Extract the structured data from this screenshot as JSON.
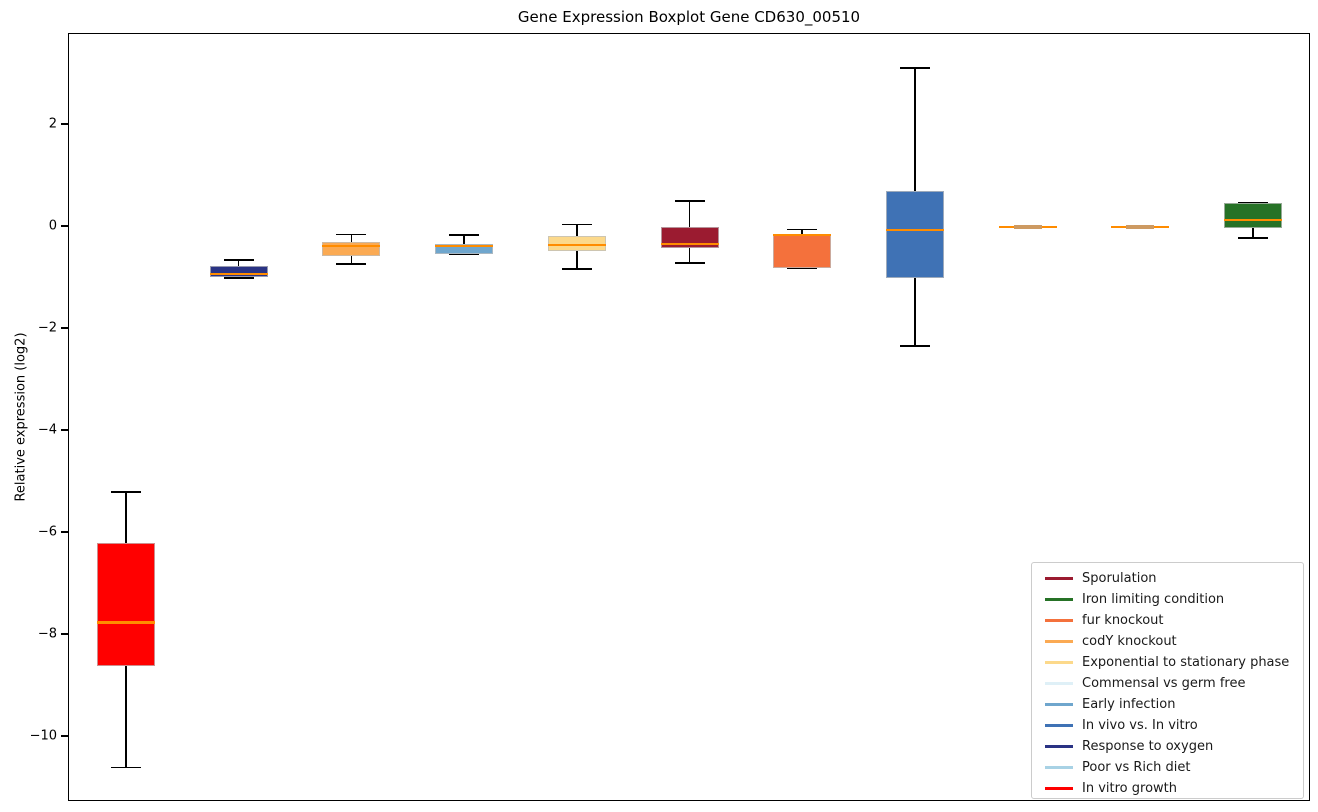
{
  "chart_data": {
    "type": "boxplot",
    "title": "Gene Expression Boxplot Gene CD630_00510",
    "ylabel": "Relative expression (log2)",
    "yticks": [
      {
        "label": "2",
        "value": 2
      },
      {
        "label": "0",
        "value": 0
      },
      {
        "label": "−2",
        "value": -2
      },
      {
        "label": "−4",
        "value": -4
      },
      {
        "label": "−6",
        "value": -6
      },
      {
        "label": "−8",
        "value": -8
      },
      {
        "label": "−10",
        "value": -10
      }
    ],
    "ylim": [
      -11.3,
      3.8
    ],
    "grid": false,
    "x_axis_labels": "none",
    "median_color": "#ff8c00",
    "flat_box_center_color": "#cd9a62",
    "whisker_color": "#000000",
    "boxes": [
      {
        "name": "In vitro growth",
        "color": "#ff0000",
        "whisker_low": -10.6,
        "q1": -8.6,
        "median": -7.75,
        "q3": -6.2,
        "whisker_high": -5.2,
        "flat": false
      },
      {
        "name": "Response to oxygen",
        "color": "#2a3384",
        "whisker_low": -1.0,
        "q1": -0.98,
        "median": -0.92,
        "q3": -0.76,
        "whisker_high": -0.65,
        "flat": false
      },
      {
        "name": "codY knockout",
        "color": "#fbaa53",
        "whisker_low": -0.73,
        "q1": -0.57,
        "median": -0.37,
        "q3": -0.29,
        "whisker_high": -0.15,
        "flat": false
      },
      {
        "name": "Early infection",
        "color": "#6fa6cd",
        "whisker_low": -0.53,
        "q1": -0.53,
        "median": -0.37,
        "q3": -0.33,
        "whisker_high": -0.16,
        "flat": false
      },
      {
        "name": "Exponential to stationary phase",
        "color": "#fcd98b",
        "whisker_low": -0.82,
        "q1": -0.47,
        "median": -0.35,
        "q3": -0.18,
        "whisker_high": 0.05,
        "flat": false
      },
      {
        "name": "Sporulation",
        "color": "#9b1b30",
        "whisker_low": -0.7,
        "q1": -0.41,
        "median": -0.33,
        "q3": 0.0,
        "whisker_high": 0.51,
        "flat": false
      },
      {
        "name": "fur knockout",
        "color": "#f4713c",
        "whisker_low": -0.8,
        "q1": -0.8,
        "median": -0.16,
        "q3": -0.14,
        "whisker_high": -0.05,
        "flat": false
      },
      {
        "name": "In vivo vs. In vitro",
        "color": "#3f72b5",
        "whisker_low": -2.33,
        "q1": -1.0,
        "median": -0.06,
        "q3": 0.71,
        "whisker_high": 3.12,
        "flat": false
      },
      {
        "name": "Commensal vs germ free",
        "color": "#dff0f7",
        "whisker_low": -0.02,
        "q1": -0.01,
        "median": 0.0,
        "q3": 0.01,
        "whisker_high": 0.02,
        "flat": true
      },
      {
        "name": "Poor vs Rich diet",
        "color": "#a8d2e5",
        "whisker_low": -0.02,
        "q1": -0.01,
        "median": 0.0,
        "q3": 0.01,
        "whisker_high": 0.02,
        "flat": true
      },
      {
        "name": "Iron limiting condition",
        "color": "#267226",
        "whisker_low": -0.22,
        "q1": -0.02,
        "median": 0.14,
        "q3": 0.47,
        "whisker_high": 0.47,
        "flat": false
      }
    ],
    "legend": {
      "position": "lower right",
      "entries": [
        {
          "label": "Sporulation",
          "color": "#9b1b30"
        },
        {
          "label": "Iron limiting condition",
          "color": "#267226"
        },
        {
          "label": "fur knockout",
          "color": "#f4713c"
        },
        {
          "label": "codY knockout",
          "color": "#fbaa53"
        },
        {
          "label": "Exponential to stationary phase",
          "color": "#fcd98b"
        },
        {
          "label": "Commensal vs germ free",
          "color": "#dff0f7"
        },
        {
          "label": "Early infection",
          "color": "#6fa6cd"
        },
        {
          "label": "In vivo vs. In vitro",
          "color": "#3f72b5"
        },
        {
          "label": "Response to oxygen",
          "color": "#2a3384"
        },
        {
          "label": "Poor vs Rich diet",
          "color": "#a8d2e5"
        },
        {
          "label": "In vitro growth",
          "color": "#ff0000"
        }
      ]
    }
  }
}
